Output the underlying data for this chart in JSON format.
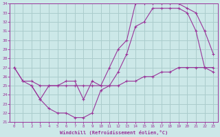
{
  "xlabel": "Windchill (Refroidissement éolien,°C)",
  "background_color": "#cce8e8",
  "grid_color": "#aacccc",
  "line_color": "#993399",
  "xlim": [
    -0.5,
    23.5
  ],
  "ylim": [
    21,
    34
  ],
  "xticks": [
    0,
    1,
    2,
    3,
    4,
    5,
    6,
    7,
    8,
    9,
    10,
    11,
    12,
    13,
    14,
    15,
    16,
    17,
    18,
    19,
    20,
    21,
    22,
    23
  ],
  "yticks": [
    21,
    22,
    23,
    24,
    25,
    26,
    27,
    28,
    29,
    30,
    31,
    32,
    33,
    34
  ],
  "line1_x": [
    0,
    1,
    2,
    3,
    4,
    5,
    6,
    7,
    8,
    9,
    10,
    11,
    12,
    13,
    14,
    15,
    16,
    17,
    18,
    19,
    20,
    21,
    22,
    23
  ],
  "line1_y": [
    27.0,
    25.5,
    25.0,
    23.5,
    22.5,
    22.0,
    22.0,
    21.5,
    21.5,
    22.0,
    24.5,
    25.0,
    26.5,
    28.5,
    31.5,
    32.0,
    33.5,
    33.5,
    33.5,
    33.5,
    33.0,
    31.0,
    27.0,
    26.5
  ],
  "line2_x": [
    0,
    1,
    2,
    3,
    4,
    5,
    6,
    7,
    8,
    9,
    10,
    11,
    12,
    13,
    14,
    15,
    16,
    17,
    18,
    19,
    20,
    21,
    22,
    23
  ],
  "line2_y": [
    27.0,
    25.5,
    25.5,
    25.0,
    25.0,
    25.0,
    25.0,
    25.0,
    25.0,
    25.0,
    25.0,
    25.0,
    25.0,
    25.5,
    25.5,
    26.0,
    26.0,
    26.5,
    26.5,
    27.0,
    27.0,
    27.0,
    27.0,
    27.0
  ],
  "line3_x": [
    2,
    3,
    4,
    5,
    6,
    7,
    8,
    9,
    10,
    11,
    12,
    13,
    14,
    15,
    16,
    17,
    18,
    19,
    20,
    21,
    22,
    23
  ],
  "line3_y": [
    25.0,
    23.5,
    25.0,
    25.0,
    25.5,
    25.5,
    23.5,
    25.5,
    25.0,
    27.0,
    29.0,
    30.0,
    34.0,
    34.0,
    34.0,
    34.0,
    34.0,
    34.0,
    33.5,
    33.0,
    31.0,
    28.5
  ]
}
